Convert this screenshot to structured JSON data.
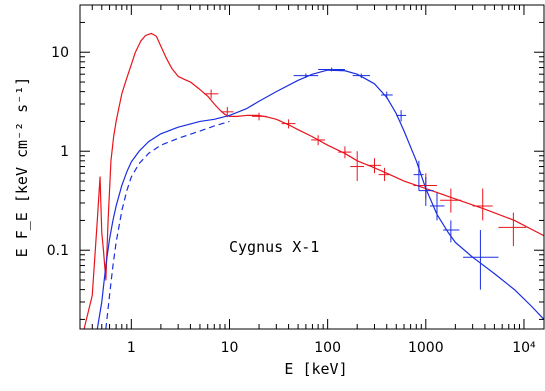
{
  "chart_data": {
    "type": "line",
    "xlabel": "E [keV]",
    "ylabel": "E F_E [keV cm⁻² s⁻¹]",
    "xscale": "log",
    "yscale": "log",
    "xlim": [
      0.3,
      16000
    ],
    "ylim": [
      0.016,
      30
    ],
    "x_ticks": [
      {
        "value": 1,
        "label": "1"
      },
      {
        "value": 10,
        "label": "10"
      },
      {
        "value": 100,
        "label": "100"
      },
      {
        "value": 1000,
        "label": "1000"
      },
      {
        "value": 10000,
        "label": "10⁴"
      }
    ],
    "y_ticks": [
      {
        "value": 0.1,
        "label": "0.1"
      },
      {
        "value": 1,
        "label": "1"
      },
      {
        "value": 10,
        "label": "10"
      }
    ],
    "annotation": "Cygnus X-1",
    "grid": false,
    "colors": {
      "red": "#e8141c",
      "blue": "#1a2ee0",
      "axis": "#000000"
    },
    "series": [
      {
        "color": "red",
        "style": "solid",
        "x": [
          0.33,
          0.4,
          0.45,
          0.48,
          0.5,
          0.52,
          0.55,
          0.58,
          0.62,
          0.66,
          0.7,
          0.75,
          0.8,
          0.9,
          1.0,
          1.1,
          1.25,
          1.4,
          1.6,
          1.8,
          2.0,
          2.3,
          2.6,
          3.0,
          3.5,
          4.0,
          5.0,
          6.0,
          7.0,
          8.0,
          9.0,
          10,
          12,
          15,
          20,
          25,
          30,
          40,
          50,
          70,
          100,
          150,
          200,
          300,
          400,
          600,
          1000,
          2000,
          4000,
          8000,
          16000
        ],
        "y": [
          0.016,
          0.035,
          0.2,
          0.55,
          0.15,
          0.1,
          0.05,
          0.2,
          0.8,
          1.4,
          2.0,
          2.8,
          3.8,
          5.5,
          7.5,
          10,
          13,
          14.8,
          15.5,
          14.5,
          11.5,
          8.5,
          6.8,
          5.7,
          5.3,
          5.0,
          4.2,
          3.6,
          3.0,
          2.6,
          2.35,
          2.25,
          2.25,
          2.3,
          2.3,
          2.2,
          2.1,
          1.85,
          1.65,
          1.4,
          1.15,
          0.95,
          0.8,
          0.68,
          0.6,
          0.5,
          0.42,
          0.33,
          0.26,
          0.2,
          0.14
        ]
      },
      {
        "color": "blue",
        "style": "solid",
        "x": [
          0.45,
          0.5,
          0.55,
          0.6,
          0.65,
          0.7,
          0.8,
          0.9,
          1.0,
          1.2,
          1.5,
          2.0,
          3.0,
          5.0,
          7.0,
          10,
          15,
          20,
          30,
          50,
          70,
          100,
          150,
          200,
          300,
          400,
          500,
          600,
          800,
          1000,
          1300,
          1700,
          2000,
          3000,
          5000,
          8000,
          12000,
          16000
        ],
        "y": [
          0.016,
          0.03,
          0.07,
          0.13,
          0.2,
          0.28,
          0.45,
          0.62,
          0.78,
          1.0,
          1.25,
          1.5,
          1.75,
          2.0,
          2.1,
          2.3,
          2.7,
          3.2,
          4.0,
          5.2,
          6.0,
          6.6,
          6.5,
          6.0,
          4.8,
          3.5,
          2.4,
          1.6,
          0.8,
          0.42,
          0.23,
          0.15,
          0.12,
          0.085,
          0.058,
          0.04,
          0.027,
          0.02
        ]
      },
      {
        "color": "blue",
        "style": "dashed",
        "x": [
          0.55,
          0.6,
          0.65,
          0.7,
          0.8,
          0.9,
          1.0,
          1.2,
          1.5,
          2.0,
          3.0,
          5.0,
          7.0,
          10
        ],
        "y": [
          0.016,
          0.035,
          0.07,
          0.12,
          0.25,
          0.4,
          0.55,
          0.75,
          0.95,
          1.15,
          1.35,
          1.6,
          1.8,
          2.0
        ]
      }
    ],
    "error_points": [
      {
        "color": "red",
        "x": 6.5,
        "y": 3.8,
        "xerr": [
          5.5,
          7.7
        ],
        "yerr": [
          3.4,
          4.2
        ]
      },
      {
        "color": "red",
        "x": 9.5,
        "y": 2.5,
        "xerr": [
          8.2,
          11
        ],
        "yerr": [
          2.2,
          2.8
        ]
      },
      {
        "color": "red",
        "x": 20,
        "y": 2.25,
        "xerr": [
          17,
          24
        ],
        "yerr": [
          2.05,
          2.45
        ]
      },
      {
        "color": "red",
        "x": 40,
        "y": 1.9,
        "xerr": [
          34,
          47
        ],
        "yerr": [
          1.7,
          2.1
        ]
      },
      {
        "color": "red",
        "x": 80,
        "y": 1.3,
        "xerr": [
          68,
          94
        ],
        "yerr": [
          1.15,
          1.45
        ]
      },
      {
        "color": "red",
        "x": 150,
        "y": 0.98,
        "xerr": [
          128,
          175
        ],
        "yerr": [
          0.85,
          1.12
        ]
      },
      {
        "color": "red",
        "x": 200,
        "y": 0.7,
        "xerr": [
          170,
          235
        ],
        "yerr": [
          0.5,
          1.0
        ]
      },
      {
        "color": "red",
        "x": 300,
        "y": 0.72,
        "xerr": [
          255,
          350
        ],
        "yerr": [
          0.6,
          0.85
        ]
      },
      {
        "color": "red",
        "x": 380,
        "y": 0.58,
        "xerr": [
          330,
          430
        ],
        "yerr": [
          0.5,
          0.68
        ]
      },
      {
        "color": "red",
        "x": 1000,
        "y": 0.45,
        "xerr": [
          750,
          1300
        ],
        "yerr": [
          0.33,
          0.6
        ]
      },
      {
        "color": "red",
        "x": 1800,
        "y": 0.32,
        "xerr": [
          1400,
          2300
        ],
        "yerr": [
          0.24,
          0.42
        ]
      },
      {
        "color": "red",
        "x": 3800,
        "y": 0.28,
        "xerr": [
          3000,
          4800
        ],
        "yerr": [
          0.2,
          0.42
        ]
      },
      {
        "color": "red",
        "x": 7800,
        "y": 0.17,
        "xerr": [
          5500,
          10500
        ],
        "yerr": [
          0.11,
          0.24
        ]
      },
      {
        "color": "blue",
        "x": 60,
        "y": 5.8,
        "xerr": [
          45,
          80
        ],
        "yerr": [
          5.5,
          6.1
        ]
      },
      {
        "color": "blue",
        "x": 110,
        "y": 6.7,
        "xerr": [
          80,
          150
        ],
        "yerr": [
          6.4,
          7.0
        ]
      },
      {
        "color": "blue",
        "x": 220,
        "y": 5.8,
        "xerr": [
          180,
          270
        ],
        "yerr": [
          5.5,
          6.1
        ]
      },
      {
        "color": "blue",
        "x": 400,
        "y": 3.7,
        "xerr": [
          350,
          460
        ],
        "yerr": [
          3.4,
          4.0
        ]
      },
      {
        "color": "blue",
        "x": 560,
        "y": 2.3,
        "xerr": [
          500,
          630
        ],
        "yerr": [
          2.0,
          2.6
        ]
      },
      {
        "color": "blue",
        "x": 850,
        "y": 0.58,
        "xerr": [
          750,
          950
        ],
        "yerr": [
          0.4,
          0.8
        ]
      },
      {
        "color": "blue",
        "x": 1000,
        "y": 0.4,
        "xerr": [
          850,
          1200
        ],
        "yerr": [
          0.28,
          0.55
        ]
      },
      {
        "color": "blue",
        "x": 1300,
        "y": 0.28,
        "xerr": [
          1100,
          1550
        ],
        "yerr": [
          0.2,
          0.38
        ]
      },
      {
        "color": "blue",
        "x": 1800,
        "y": 0.16,
        "xerr": [
          1500,
          2200
        ],
        "yerr": [
          0.12,
          0.2
        ]
      },
      {
        "color": "blue",
        "x": 3600,
        "y": 0.085,
        "xerr": [
          2400,
          5500
        ],
        "yerr": [
          0.04,
          0.16
        ]
      }
    ]
  }
}
